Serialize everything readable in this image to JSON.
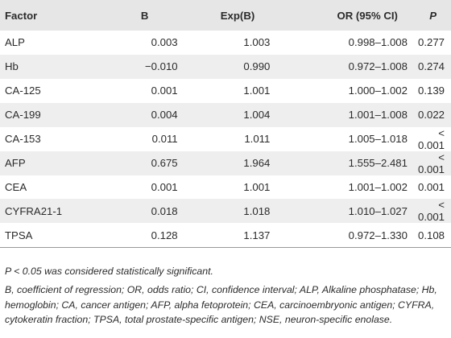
{
  "table": {
    "headers": {
      "factor": "Factor",
      "b": "B",
      "exp": "Exp(B)",
      "or": "OR (95% CI)",
      "p": "P"
    },
    "rows": [
      {
        "factor": "ALP",
        "b": "0.003",
        "exp": "1.003",
        "or": "0.998–1.008",
        "p": "0.277"
      },
      {
        "factor": "Hb",
        "b": "−0.010",
        "exp": "0.990",
        "or": "0.972–1.008",
        "p": "0.274"
      },
      {
        "factor": "CA-125",
        "b": "0.001",
        "exp": "1.001",
        "or": "1.000–1.002",
        "p": "0.139"
      },
      {
        "factor": "CA-199",
        "b": "0.004",
        "exp": "1.004",
        "or": "1.001–1.008",
        "p": "0.022"
      },
      {
        "factor": "CA-153",
        "b": "0.011",
        "exp": "1.011",
        "or": "1.005–1.018",
        "p": "< 0.001"
      },
      {
        "factor": "AFP",
        "b": "0.675",
        "exp": "1.964",
        "or": "1.555–2.481",
        "p": "< 0.001"
      },
      {
        "factor": "CEA",
        "b": "0.001",
        "exp": "1.001",
        "or": "1.001–1.002",
        "p": "0.001"
      },
      {
        "factor": "CYFRA21-1",
        "b": "0.018",
        "exp": "1.018",
        "or": "1.010–1.027",
        "p": "< 0.001"
      },
      {
        "factor": "TPSA",
        "b": "0.128",
        "exp": "1.137",
        "or": "0.972–1.330",
        "p": "0.108"
      }
    ]
  },
  "notes": {
    "significance": "P < 0.05 was considered statistically significant.",
    "abbreviations": "B, coefficient of regression; OR, odds ratio; CI, confidence interval; ALP, Alkaline phosphatase; Hb, hemoglobin; CA, cancer antigen; AFP, alpha fetoprotein; CEA, carcinoembryonic antigen; CYFRA, cytokeratin fraction; TPSA, total prostate-specific antigen; NSE, neuron-specific enolase."
  }
}
